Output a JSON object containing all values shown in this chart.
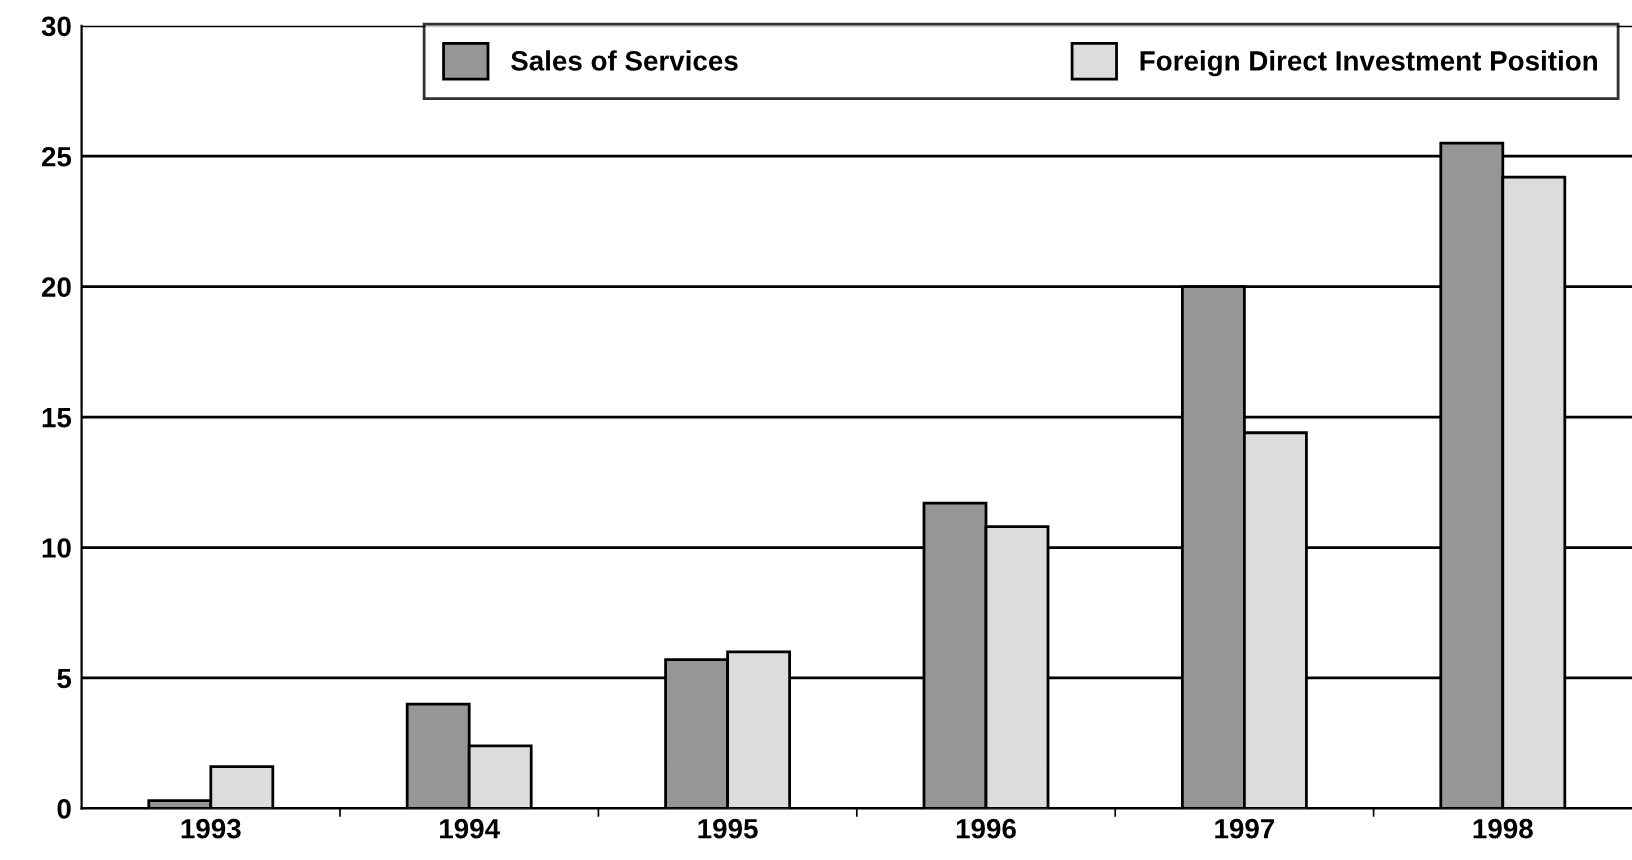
{
  "chart_data": {
    "type": "bar",
    "categories": [
      "1993",
      "1994",
      "1995",
      "1996",
      "1997",
      "1998"
    ],
    "series": [
      {
        "name": "Sales of Services",
        "color": "#969696",
        "values": [
          0.3,
          4.0,
          5.7,
          11.7,
          20.0,
          25.5
        ]
      },
      {
        "name": "Foreign Direct Investment Position",
        "color": "#dcdcdc",
        "values": [
          1.6,
          2.4,
          6.0,
          10.8,
          14.4,
          24.2
        ]
      }
    ],
    "ylim": [
      0,
      30
    ],
    "yticks": [
      0,
      5,
      10,
      15,
      20,
      25,
      30
    ],
    "grid": "y",
    "legend": "top"
  }
}
